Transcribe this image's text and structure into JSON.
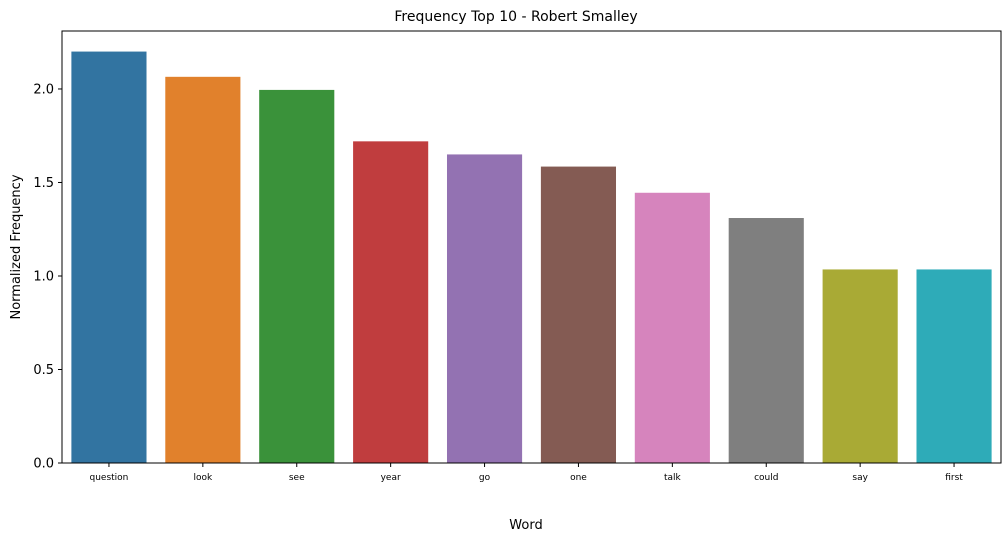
{
  "chart_data": {
    "type": "bar",
    "title": "Frequency Top 10 - Robert Smalley",
    "xlabel": "Word",
    "ylabel": "Normalized Frequency",
    "categories": [
      "question",
      "look",
      "see",
      "year",
      "go",
      "one",
      "talk",
      "could",
      "say",
      "first"
    ],
    "values": [
      2.2,
      2.065,
      1.995,
      1.72,
      1.65,
      1.585,
      1.445,
      1.31,
      1.035,
      1.035
    ],
    "colors": [
      "#3274a1",
      "#e1812c",
      "#3a923a",
      "#c03d3e",
      "#9372b2",
      "#845b53",
      "#d684bd",
      "#7f7f7f",
      "#a9aa35",
      "#2eabb8"
    ],
    "ylim": [
      0,
      2.31
    ],
    "yticks": [
      "0.0",
      "0.5",
      "1.0",
      "1.5",
      "2.0"
    ],
    "ytick_values": [
      0,
      0.5,
      1.0,
      1.5,
      2.0
    ],
    "grid": false,
    "legend": "none"
  }
}
